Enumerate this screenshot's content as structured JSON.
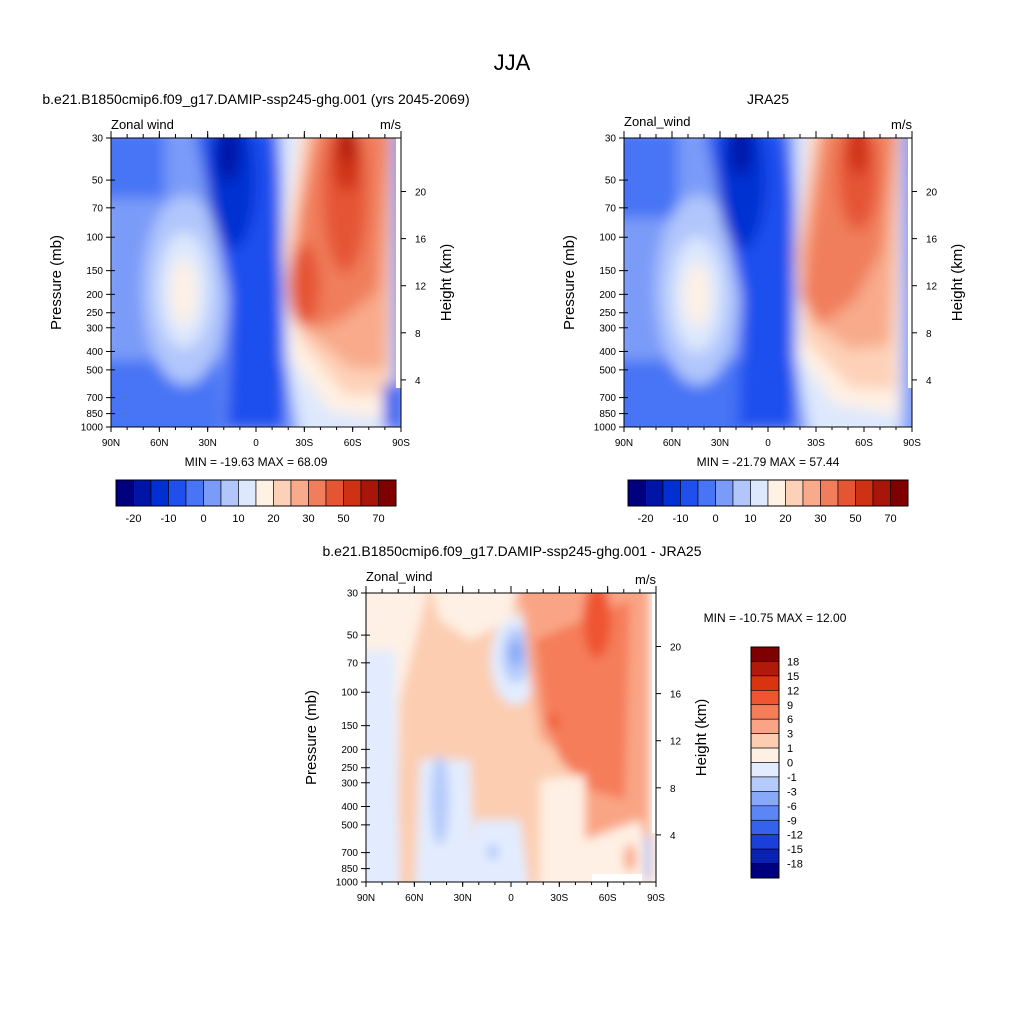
{
  "page": {
    "title": "JJA"
  },
  "chart_data": [
    {
      "type": "heatmap",
      "title": "b.e21.B1850cmip6.f09_g17.DAMIP-ssp245-ghg.001 (yrs 2045-2069)",
      "left_string": "Zonal wind",
      "right_string": "m/s",
      "ylabel": "Pressure (mb)",
      "ylabel_right": "Height (km)",
      "x_ticks": [
        "90N",
        "60N",
        "30N",
        "0",
        "30S",
        "60S",
        "90S"
      ],
      "y_ticks": [
        "30",
        "50",
        "70",
        "100",
        "150",
        "200",
        "250",
        "300",
        "400",
        "500",
        "700",
        "850",
        "1000"
      ],
      "height_ticks": [
        "20",
        "16",
        "12",
        "8",
        "4"
      ],
      "stats": "MIN = -19.63  MAX =  68.09",
      "min": -19.63,
      "max": 68.09,
      "colorbar_labels": [
        "-20",
        "-10",
        "0",
        "10",
        "20",
        "30",
        "50",
        "70"
      ]
    },
    {
      "type": "heatmap",
      "title": "JRA25",
      "left_string": "Zonal_wind",
      "right_string": "m/s",
      "ylabel": "Pressure (mb)",
      "ylabel_right": "Height (km)",
      "x_ticks": [
        "90N",
        "60N",
        "30N",
        "0",
        "30S",
        "60S",
        "90S"
      ],
      "y_ticks": [
        "30",
        "50",
        "70",
        "100",
        "150",
        "200",
        "250",
        "300",
        "400",
        "500",
        "700",
        "850",
        "1000"
      ],
      "height_ticks": [
        "20",
        "16",
        "12",
        "8",
        "4"
      ],
      "stats": "MIN = -21.79  MAX =  57.44",
      "min": -21.79,
      "max": 57.44,
      "colorbar_labels": [
        "-20",
        "-10",
        "0",
        "10",
        "20",
        "30",
        "50",
        "70"
      ]
    },
    {
      "type": "heatmap",
      "title": "b.e21.B1850cmip6.f09_g17.DAMIP-ssp245-ghg.001 - JRA25",
      "left_string": "Zonal_wind",
      "right_string": "m/s",
      "ylabel": "Pressure (mb)",
      "ylabel_right": "Height (km)",
      "x_ticks": [
        "90N",
        "60N",
        "30N",
        "0",
        "30S",
        "60S",
        "90S"
      ],
      "y_ticks": [
        "30",
        "50",
        "70",
        "100",
        "150",
        "200",
        "250",
        "300",
        "400",
        "500",
        "700",
        "850",
        "1000"
      ],
      "height_ticks": [
        "20",
        "16",
        "12",
        "8",
        "4"
      ],
      "stats": "MIN = -10.75  MAX =  12.00",
      "min": -10.75,
      "max": 12.0,
      "colorbar_labels": [
        "18",
        "15",
        "12",
        "9",
        "6",
        "3",
        "1",
        "0",
        "-1",
        "-3",
        "-6",
        "-9",
        "-12",
        "-15",
        "-18"
      ]
    }
  ],
  "colors": {
    "scale_abs": [
      "#00007f",
      "#0015a8",
      "#0030d2",
      "#1f50ee",
      "#4775f5",
      "#7a9bf8",
      "#b1c6fb",
      "#dde8fd",
      "#fff1e4",
      "#fdd1b8",
      "#f8aa8b",
      "#f07e5c",
      "#e55534",
      "#cf3115",
      "#a91508",
      "#7f0000"
    ],
    "scale_diff": [
      "#7f0000",
      "#b11a0a",
      "#d9340f",
      "#ef5530",
      "#f57d5a",
      "#f9a585",
      "#fccdb1",
      "#fef0e4",
      "#e2ecfe",
      "#b5cbfb",
      "#88a9f8",
      "#5c86f4",
      "#3462ec",
      "#1b3fd9",
      "#0a22b3",
      "#00007f"
    ]
  }
}
